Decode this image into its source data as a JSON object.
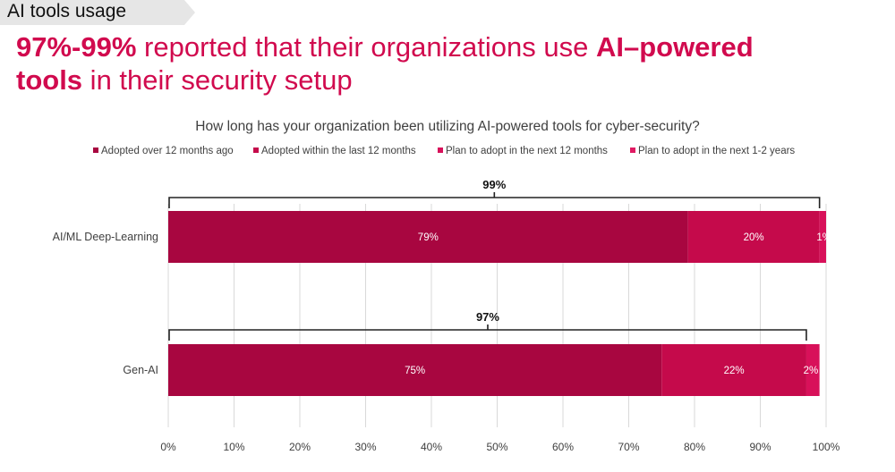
{
  "slide": {
    "tag": "AI tools usage",
    "headline": {
      "lead": "97%-99%",
      "middle": " reported that their organizations use ",
      "emph1": "AI–powered",
      "emph2": "tools",
      "tail": " in their security setup"
    }
  },
  "colors": {
    "accent": "#d10a4e",
    "series": [
      "#a80640",
      "#c50a4b",
      "#d8115a",
      "#e01a63"
    ]
  },
  "chart_data": {
    "type": "bar",
    "orientation": "horizontal",
    "stacked": true,
    "title": "How long has your organization been utilizing AI-powered tools for cyber-security?",
    "categories": [
      "AI/ML Deep-Learning",
      "Gen-AI"
    ],
    "series": [
      {
        "name": "Adopted over 12 months ago",
        "values": [
          79,
          75
        ],
        "labels": [
          "79%",
          "75%"
        ]
      },
      {
        "name": "Adopted within the last 12 months",
        "values": [
          20,
          22
        ],
        "labels": [
          "20%",
          "22%"
        ]
      },
      {
        "name": "Plan to adopt in the next 12 months",
        "values": [
          1,
          2
        ],
        "labels": [
          "1%",
          "2%"
        ]
      },
      {
        "name": "Plan to adopt in the next 1-2 years",
        "values": [
          0,
          0
        ],
        "labels": [
          "",
          ""
        ]
      }
    ],
    "bracket_totals": [
      99,
      97
    ],
    "bracket_labels": [
      "99%",
      "97%"
    ],
    "xlim": [
      0,
      100
    ],
    "xticks": [
      "0%",
      "10%",
      "20%",
      "30%",
      "40%",
      "50%",
      "60%",
      "70%",
      "80%",
      "90%",
      "100%"
    ],
    "grid": true,
    "legend_position": "top"
  }
}
